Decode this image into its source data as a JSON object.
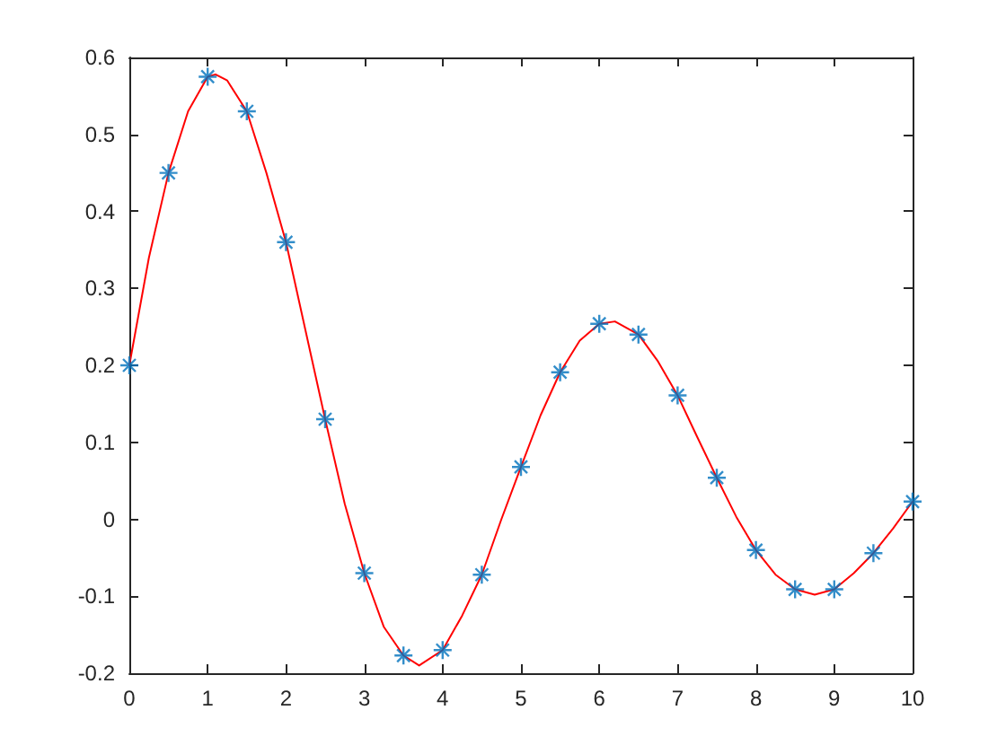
{
  "chart_data": {
    "type": "scatter",
    "xlim": [
      0,
      10
    ],
    "xticks": [
      0,
      1,
      2,
      3,
      4,
      5,
      6,
      7,
      8,
      9,
      10
    ],
    "ylim": [
      -0.2,
      0.6
    ],
    "yticks": [
      -0.2,
      -0.1,
      0,
      0.1,
      0.2,
      0.3,
      0.4,
      0.5,
      0.6
    ],
    "grid": false,
    "series": [
      {
        "type": "line",
        "color": "#ff0000",
        "marker": "none",
        "line_style": "solid",
        "x": [
          0,
          0.25,
          0.5,
          0.75,
          1,
          1.1,
          1.25,
          1.5,
          1.75,
          2,
          2.25,
          2.5,
          2.75,
          3,
          3.25,
          3.5,
          3.7,
          4,
          4.25,
          4.5,
          4.75,
          5,
          5.25,
          5.5,
          5.75,
          6,
          6.2,
          6.5,
          6.75,
          7,
          7.25,
          7.5,
          7.75,
          8,
          8.25,
          8.5,
          8.75,
          9,
          9.25,
          9.5,
          9.75,
          10
        ],
        "values": [
          0.2,
          0.34,
          0.45,
          0.53,
          0.575,
          0.578,
          0.57,
          0.53,
          0.45,
          0.36,
          0.245,
          0.13,
          0.02,
          -0.07,
          -0.14,
          -0.177,
          -0.19,
          -0.17,
          -0.125,
          -0.072,
          0.0,
          0.068,
          0.135,
          0.191,
          0.232,
          0.254,
          0.257,
          0.24,
          0.205,
          0.161,
          0.107,
          0.054,
          0.003,
          -0.04,
          -0.072,
          -0.091,
          -0.098,
          -0.091,
          -0.07,
          -0.044,
          -0.012,
          0.023
        ]
      },
      {
        "color": "#0072bd",
        "marker": "cross",
        "x": [
          0,
          0.5,
          1,
          1.5,
          2,
          2.5,
          3,
          3.5,
          4,
          4.5,
          5,
          5.5,
          6,
          6.5,
          7,
          7.5,
          8,
          8.5,
          9,
          9.5,
          10
        ],
        "values": [
          0.2,
          0.45,
          0.575,
          0.53,
          0.36,
          0.13,
          -0.07,
          -0.177,
          -0.17,
          -0.072,
          0.068,
          0.191,
          0.254,
          0.24,
          0.161,
          0.054,
          -0.04,
          -0.091,
          -0.091,
          -0.044,
          0.023
        ]
      }
    ]
  }
}
